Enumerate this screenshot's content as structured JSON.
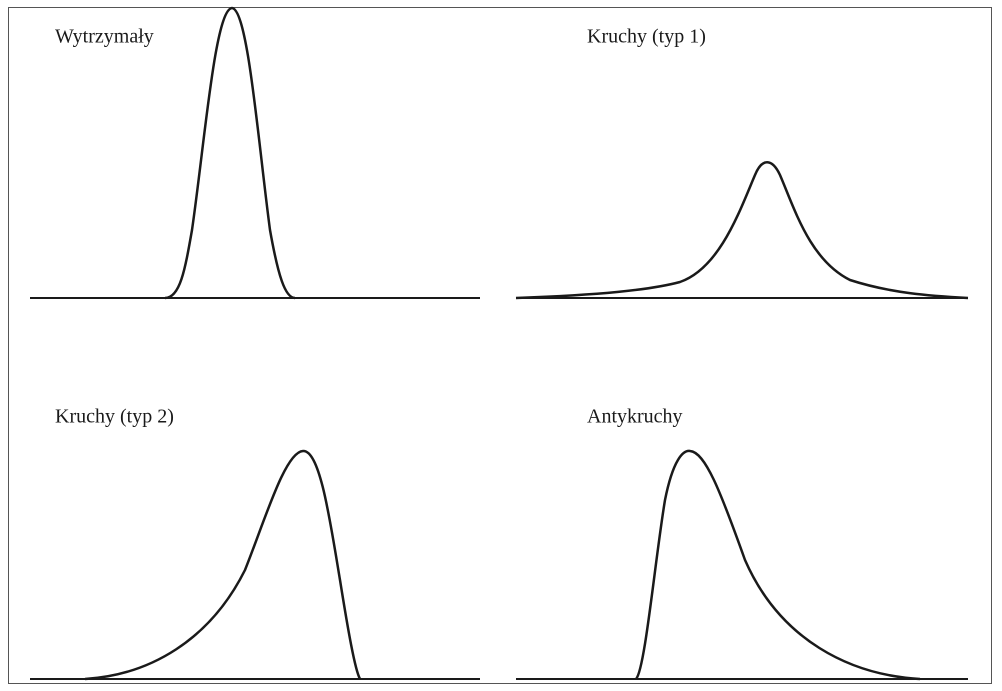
{
  "panels": [
    {
      "label": "Wytrzymały"
    },
    {
      "label": "Kruchy (typ 1)"
    },
    {
      "label": "Kruchy (typ 2)"
    },
    {
      "label": "Antykruchy"
    }
  ]
}
